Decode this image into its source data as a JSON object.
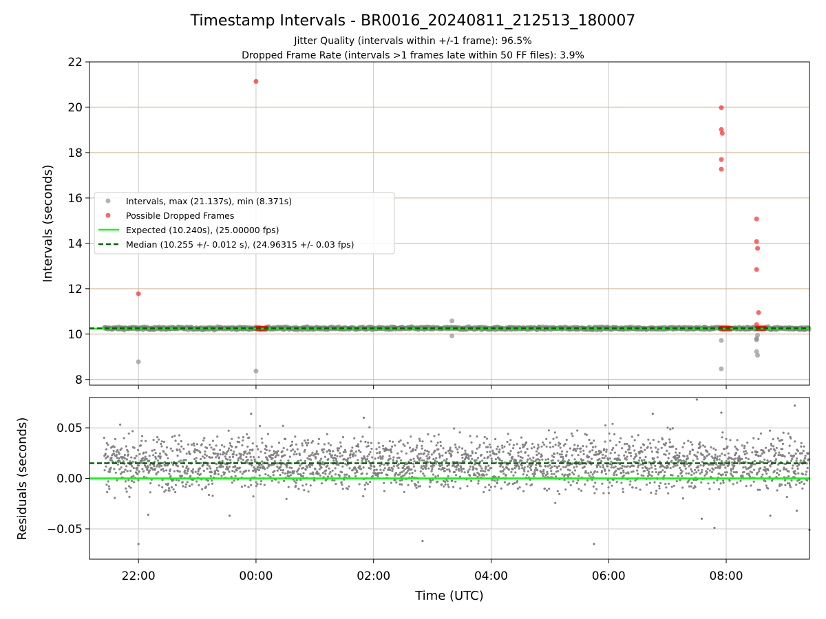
{
  "title": "Timestamp Intervals - BR0016_20240811_212513_180007",
  "subtitle_line1": "Jitter Quality (intervals within +/-1 frame): 96.5%",
  "subtitle_line2": "Dropped Frame Rate (intervals >1 frames late within 50 FF files): 3.9%",
  "colors": {
    "intervals": "#808080",
    "dropped": "#ff0000",
    "expected": "#00ff00",
    "median": "#006400",
    "hgrid_top": "#d2b48c",
    "grid": "#c8c8c8"
  },
  "chart_data": [
    {
      "type": "scatter",
      "ylabel": "Intervals (seconds)",
      "xlim": [
        "21:10",
        "09:25"
      ],
      "ylim": [
        7.75,
        22
      ],
      "y_ticks": [
        8,
        10,
        12,
        14,
        16,
        18,
        20,
        22
      ],
      "x_tick_labels": [
        "22:00",
        "00:00",
        "02:00",
        "04:00",
        "06:00",
        "08:00"
      ],
      "grid": true,
      "legend_position": "center-left",
      "legend": [
        "Intervals, max (21.137s), min (8.371s)",
        "Possible Dropped Frames",
        "Expected (10.240s), (25.00000 fps)",
        "Median (10.255 +/- 0.012 s), (24.96315 +/- 0.03 fps)"
      ],
      "expected_value": 10.24,
      "median_value": 10.255,
      "series": [
        {
          "name": "Intervals, max (21.137s), min (8.371s)",
          "band": {
            "x_start": "21:25",
            "x_end": "09:25",
            "center": 10.255,
            "spread": 0.03
          },
          "outliers": [
            {
              "x": "22:00",
              "y": 8.78
            },
            {
              "x": "00:00",
              "y": 8.37
            },
            {
              "x": "03:20",
              "y": 10.58
            },
            {
              "x": "03:20",
              "y": 9.92
            },
            {
              "x": "07:55",
              "y": 9.72
            },
            {
              "x": "07:55",
              "y": 8.47
            },
            {
              "x": "08:31",
              "y": 9.8
            },
            {
              "x": "08:31",
              "y": 9.75
            },
            {
              "x": "08:31",
              "y": 9.23
            },
            {
              "x": "08:32",
              "y": 9.07
            },
            {
              "x": "08:32",
              "y": 9.95
            }
          ]
        },
        {
          "name": "Possible Dropped Frames",
          "points": [
            {
              "x": "22:00",
              "y": 11.78
            },
            {
              "x": "00:00",
              "y": 21.14
            },
            {
              "x": "07:55",
              "y": 19.98
            },
            {
              "x": "07:55",
              "y": 19.02
            },
            {
              "x": "07:56",
              "y": 18.85
            },
            {
              "x": "07:55",
              "y": 17.7
            },
            {
              "x": "07:55",
              "y": 17.27
            },
            {
              "x": "08:31",
              "y": 15.08
            },
            {
              "x": "08:31",
              "y": 14.08
            },
            {
              "x": "08:32",
              "y": 13.78
            },
            {
              "x": "08:31",
              "y": 12.85
            },
            {
              "x": "08:33",
              "y": 10.95
            },
            {
              "x": "08:31",
              "y": 10.42
            }
          ],
          "clusters": [
            {
              "x_start": "00:00",
              "x_end": "00:11",
              "y": 10.255
            },
            {
              "x_start": "07:54",
              "x_end": "08:05",
              "y": 10.255
            },
            {
              "x_start": "08:31",
              "x_end": "08:40",
              "y": 10.255
            }
          ]
        }
      ]
    },
    {
      "type": "scatter",
      "xlabel": "Time (UTC)",
      "ylabel": "Residuals (seconds)",
      "xlim": [
        "21:10",
        "09:25"
      ],
      "ylim": [
        -0.08,
        0.08
      ],
      "y_ticks": [
        -0.05,
        0.0,
        0.05
      ],
      "y_tick_labels": [
        "−0.05",
        "0.00",
        "0.05"
      ],
      "x_tick_labels": [
        "22:00",
        "00:00",
        "02:00",
        "04:00",
        "06:00",
        "08:00"
      ],
      "grid": true,
      "expected_value": 0.0,
      "median_value": 0.015,
      "series": [
        {
          "name": "Residuals",
          "band": {
            "x_start": "21:25",
            "x_end": "09:25",
            "center": 0.015,
            "spread": 0.013
          },
          "outliers": [
            {
              "x": "22:00",
              "y": -0.065
            },
            {
              "x": "22:10",
              "y": -0.036
            },
            {
              "x": "23:33",
              "y": -0.037
            },
            {
              "x": "23:55",
              "y": 0.064
            },
            {
              "x": "01:50",
              "y": 0.06
            },
            {
              "x": "02:50",
              "y": -0.062
            },
            {
              "x": "05:45",
              "y": -0.065
            },
            {
              "x": "06:45",
              "y": 0.064
            },
            {
              "x": "07:30",
              "y": 0.078
            },
            {
              "x": "07:35",
              "y": -0.04
            },
            {
              "x": "07:48",
              "y": -0.049
            },
            {
              "x": "07:55",
              "y": 0.065
            },
            {
              "x": "08:45",
              "y": -0.037
            },
            {
              "x": "09:10",
              "y": 0.072
            },
            {
              "x": "09:12",
              "y": -0.032
            },
            {
              "x": "09:25",
              "y": -0.051
            }
          ]
        }
      ]
    }
  ]
}
